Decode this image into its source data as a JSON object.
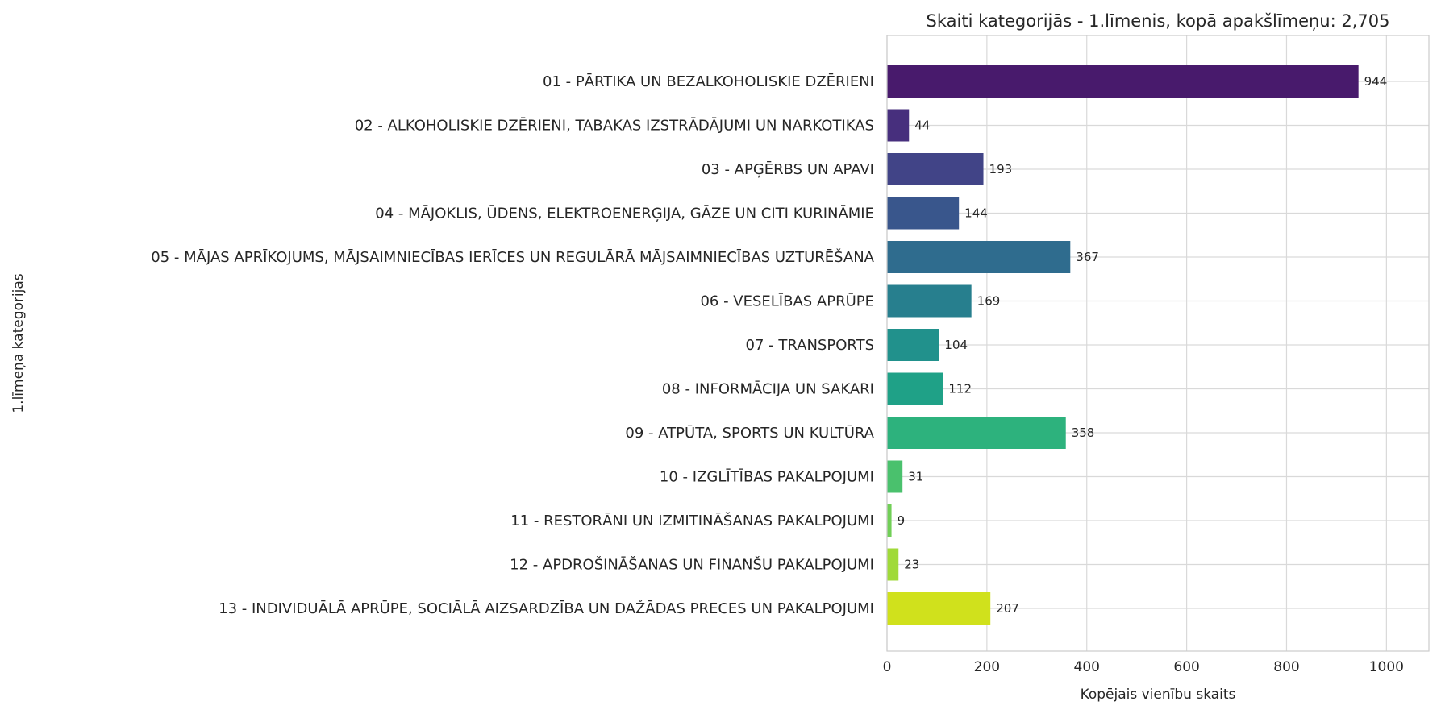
{
  "chart_data": {
    "type": "bar",
    "orientation": "horizontal",
    "title": "Skaiti kategorijās - 1.līmenis, kopā apakšlīmeņu: 2,705",
    "xlabel": "Kopējais vienību skaits",
    "ylabel": "1.līmeņa kategorijas",
    "xlim": [
      0,
      1085
    ],
    "xticks": [
      0,
      200,
      400,
      600,
      800,
      1000
    ],
    "grid": true,
    "categories": [
      "01 - PĀRTIKA UN BEZALKOHOLISKIE DZĒRIENI",
      "02 - ALKOHOLISKIE DZĒRIENI, TABAKAS IZSTRĀDĀJUMI UN NARKOTIKAS",
      "03 - APĢĒRBS UN APAVI",
      "04 - MĀJOKLIS, ŪDENS, ELEKTROENERĢIJA, GĀZE UN CITI KURINĀMIE",
      "05 - MĀJAS APRĪKOJUMS, MĀJSAIMNIECĪBAS IERĪCES UN REGULĀRĀ MĀJSAIMNIECĪBAS UZTURĒŠANA",
      "06 - VESELĪBAS APRŪPE",
      "07 - TRANSPORTS",
      "08 - INFORMĀCIJA UN SAKARI",
      "09 - ATPŪTA, SPORTS UN KULTŪRA",
      "10 - IZGLĪTĪBAS PAKALPOJUMI",
      "11 - RESTORĀNI UN IZMITINĀŠANAS PAKALPOJUMI",
      "12 - APDROŠINĀŠANAS UN FINANŠU PAKALPOJUMI",
      "13 - INDIVIDUĀLĀ APRŪPE, SOCIĀLĀ AIZSARDZĪBA UN DAŽĀDAS PRECES UN PAKALPOJUMI"
    ],
    "values": [
      944,
      44,
      193,
      144,
      367,
      169,
      104,
      112,
      358,
      31,
      9,
      23,
      207
    ],
    "value_labels": [
      "944",
      "44",
      "193",
      "144",
      "367",
      "169",
      "104",
      "112",
      "358",
      "31",
      "9",
      "23",
      "207"
    ],
    "colors": [
      "#481a6c",
      "#472f7d",
      "#414487",
      "#39568c",
      "#2f6c8e",
      "#277f8e",
      "#21918c",
      "#1fa187",
      "#2db27d",
      "#4ac16d",
      "#71cf57",
      "#a0da39",
      "#d0e11c"
    ]
  }
}
